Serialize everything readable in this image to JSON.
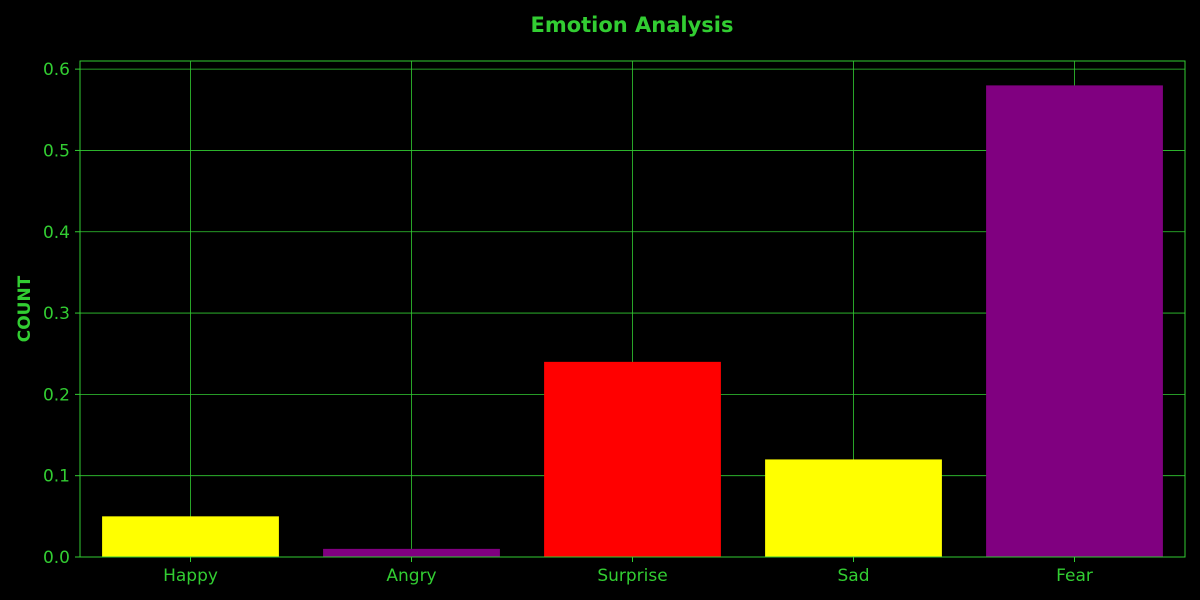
{
  "chart_data": {
    "type": "bar",
    "title": "Emotion Analysis",
    "xlabel": "",
    "ylabel": "COUNT",
    "categories": [
      "Happy",
      "Angry",
      "Surprise",
      "Sad",
      "Fear"
    ],
    "values": [
      0.05,
      0.01,
      0.24,
      0.12,
      0.58
    ],
    "bar_colors": [
      "#ffff00",
      "#800080",
      "#ff0000",
      "#ffff00",
      "#800080"
    ],
    "ylim": [
      0,
      0.61
    ],
    "yticks": [
      "0.0",
      "0.1",
      "0.2",
      "0.3",
      "0.4",
      "0.5",
      "0.6"
    ],
    "grid": true,
    "background_color": "#000000",
    "text_color": "#32cd32",
    "grid_color": "#32cd32"
  }
}
